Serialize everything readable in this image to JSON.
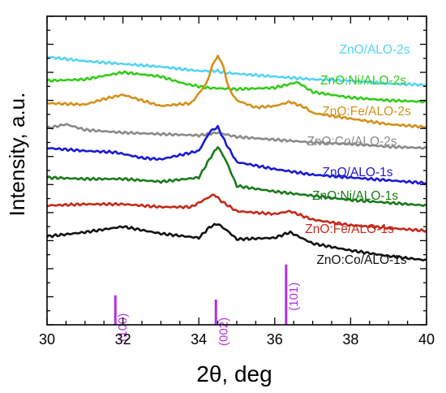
{
  "chart_data": {
    "type": "line",
    "xlabel": "2θ, deg",
    "ylabel": "Intensity, a.u.",
    "xlim": [
      30,
      40
    ],
    "ylim": [
      0,
      11
    ],
    "x_ticks": [
      "30",
      "32",
      "34",
      "36",
      "38",
      "40"
    ],
    "grid": false,
    "series": [
      {
        "name": "ZnO/ALO-2s",
        "color": "#55d4f2",
        "x": [
          30,
          31,
          32,
          33,
          34,
          34.4,
          34.5,
          34.6,
          35,
          36,
          37,
          38,
          39,
          40
        ],
        "y": [
          9.55,
          9.4,
          9.3,
          9.2,
          9.05,
          9.05,
          9.05,
          9.0,
          8.95,
          8.85,
          8.75,
          8.7,
          8.6,
          8.55
        ]
      },
      {
        "name": "ZnO:Ni/ALO-2s",
        "color": "#33cc1a",
        "x": [
          30,
          31,
          32,
          33,
          33.6,
          34.2,
          35,
          36,
          36.6,
          37,
          38,
          39,
          40
        ],
        "y": [
          8.7,
          8.75,
          9.0,
          8.85,
          8.6,
          8.45,
          8.4,
          8.45,
          8.65,
          8.3,
          8.1,
          8.0,
          7.95
        ]
      },
      {
        "name": "ZnO:Fe/ALO-2s",
        "color": "#d4911a",
        "x": [
          30,
          31,
          31.5,
          32,
          32.5,
          33,
          33.8,
          34.2,
          34.4,
          34.5,
          34.6,
          34.8,
          35,
          35.5,
          36,
          36.4,
          36.8,
          37,
          38,
          39,
          40
        ],
        "y": [
          7.9,
          7.85,
          8.05,
          8.2,
          8.0,
          7.8,
          7.9,
          8.6,
          9.4,
          9.55,
          9.4,
          8.4,
          8.0,
          7.75,
          7.8,
          7.95,
          7.75,
          7.55,
          7.35,
          7.15,
          7.05
        ]
      },
      {
        "name": "ZnO:Co/ALO-2s",
        "color": "#8a8a8a",
        "x": [
          30,
          30.5,
          31,
          32,
          33,
          34,
          34.5,
          35,
          36,
          37,
          38,
          39,
          40
        ],
        "y": [
          7.0,
          7.15,
          6.95,
          6.85,
          6.8,
          6.75,
          6.85,
          6.7,
          6.6,
          6.5,
          6.45,
          6.35,
          6.3
        ]
      },
      {
        "name": "ZnO/ALO-1s",
        "color": "#1a1ad4",
        "x": [
          30,
          31,
          31.8,
          32.5,
          33,
          34,
          34.3,
          34.5,
          34.7,
          35,
          36,
          37,
          38,
          39,
          40
        ],
        "y": [
          6.3,
          6.2,
          6.15,
          5.95,
          5.9,
          6.2,
          6.9,
          7.05,
          6.5,
          5.8,
          5.55,
          5.35,
          5.25,
          5.15,
          5.05
        ]
      },
      {
        "name": "ZnO:Ni/ALO-1s",
        "color": "#1a7a1a",
        "x": [
          30,
          31,
          32,
          33,
          34,
          34.3,
          34.5,
          34.7,
          35,
          36,
          37,
          38,
          39,
          40
        ],
        "y": [
          5.25,
          5.2,
          5.2,
          5.1,
          5.25,
          5.95,
          6.35,
          5.9,
          4.95,
          4.75,
          4.6,
          4.45,
          4.35,
          4.25
        ]
      },
      {
        "name": "ZnO:Fe/ALO-1s",
        "color": "#c42a1a",
        "x": [
          30,
          31,
          32,
          33,
          33.8,
          34.2,
          34.4,
          34.6,
          35,
          36,
          36.4,
          37,
          38,
          39,
          40
        ],
        "y": [
          4.25,
          4.3,
          4.3,
          4.2,
          4.2,
          4.5,
          4.65,
          4.4,
          4.05,
          3.95,
          4.05,
          3.75,
          3.55,
          3.45,
          3.35
        ]
      },
      {
        "name": "ZnO:Co/ALO-1s",
        "color": "#111111",
        "x": [
          30,
          31,
          32,
          33,
          34,
          34.3,
          34.5,
          34.8,
          35,
          36,
          36.4,
          37,
          38,
          39,
          40
        ],
        "y": [
          3.15,
          3.3,
          3.5,
          3.25,
          3.1,
          3.5,
          3.6,
          3.3,
          3.05,
          3.1,
          3.3,
          2.9,
          2.65,
          2.45,
          2.3
        ]
      }
    ],
    "reference_lines": {
      "color": "#b030e0",
      "lines": [
        {
          "x": 31.8,
          "height": 1.05,
          "label": "(100)"
        },
        {
          "x": 34.45,
          "height": 0.9,
          "label": "(002)"
        },
        {
          "x": 36.3,
          "height": 2.15,
          "label": "(101)"
        }
      ]
    }
  }
}
